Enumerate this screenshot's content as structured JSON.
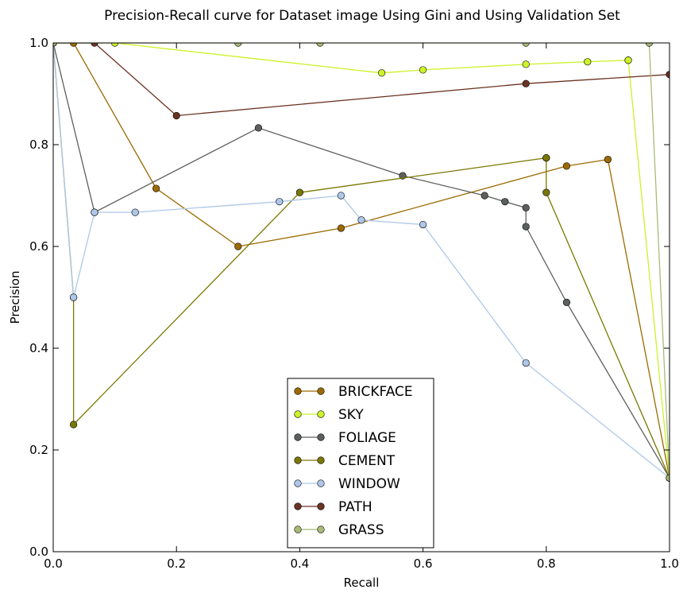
{
  "chart_data": {
    "type": "line",
    "title": "Precision-Recall curve for Dataset image Using Gini and Using Validation Set",
    "xlabel": "Recall",
    "ylabel": "Precision",
    "xlim": [
      0,
      1
    ],
    "ylim": [
      0,
      1
    ],
    "xticks": [
      "0.0",
      "0.2",
      "0.4",
      "0.6",
      "0.8",
      "1.0"
    ],
    "yticks": [
      "0.0",
      "0.2",
      "0.4",
      "0.6",
      "0.8",
      "1.0"
    ],
    "grid": false,
    "legend_position": "bottom-center",
    "series": [
      {
        "name": "BRICKFACE",
        "color": "#9c6a00",
        "points": [
          [
            0.0,
            1.0
          ],
          [
            0.033,
            1.0
          ],
          [
            0.167,
            0.714
          ],
          [
            0.3,
            0.6
          ],
          [
            0.467,
            0.636
          ],
          [
            0.833,
            0.758
          ],
          [
            0.9,
            0.771
          ],
          [
            1.0,
            0.145
          ]
        ]
      },
      {
        "name": "SKY",
        "color": "#ccf229",
        "points": [
          [
            0.0,
            1.0
          ],
          [
            0.1,
            1.0
          ],
          [
            0.533,
            0.941
          ],
          [
            0.6,
            0.947
          ],
          [
            0.767,
            0.958
          ],
          [
            0.867,
            0.963
          ],
          [
            0.933,
            0.966
          ],
          [
            0.933,
            0.966
          ],
          [
            1.0,
            0.145
          ]
        ]
      },
      {
        "name": "FOLIAGE",
        "color": "#5c605c",
        "points": [
          [
            0.0,
            1.0
          ],
          [
            0.067,
            0.667
          ],
          [
            0.333,
            0.833
          ],
          [
            0.567,
            0.739
          ],
          [
            0.7,
            0.7
          ],
          [
            0.733,
            0.688
          ],
          [
            0.767,
            0.676
          ],
          [
            0.767,
            0.639
          ],
          [
            0.833,
            0.49
          ],
          [
            1.0,
            0.145
          ]
        ]
      },
      {
        "name": "CEMENT",
        "color": "#7a7800",
        "points": [
          [
            0.0,
            1.0
          ],
          [
            0.033,
            0.5
          ],
          [
            0.033,
            0.25
          ],
          [
            0.4,
            0.706
          ],
          [
            0.8,
            0.774
          ],
          [
            0.8,
            0.774
          ],
          [
            0.8,
            0.706
          ],
          [
            1.0,
            0.145
          ]
        ]
      },
      {
        "name": "WINDOW",
        "color": "#aec7e8",
        "points": [
          [
            0.0,
            1.0
          ],
          [
            0.033,
            0.5
          ],
          [
            0.067,
            0.667
          ],
          [
            0.133,
            0.667
          ],
          [
            0.367,
            0.688
          ],
          [
            0.467,
            0.7
          ],
          [
            0.5,
            0.652
          ],
          [
            0.6,
            0.643
          ],
          [
            0.767,
            0.371
          ],
          [
            1.0,
            0.145
          ]
        ]
      },
      {
        "name": "PATH",
        "color": "#6b3322",
        "points": [
          [
            0.0,
            1.0
          ],
          [
            0.067,
            1.0
          ],
          [
            0.2,
            0.857
          ],
          [
            0.767,
            0.92
          ],
          [
            1.0,
            0.938
          ]
        ]
      },
      {
        "name": "GRASS",
        "color": "#a8bb78",
        "points": [
          [
            0.0,
            1.0
          ],
          [
            0.3,
            1.0
          ],
          [
            0.433,
            1.0
          ],
          [
            0.767,
            1.0
          ],
          [
            0.967,
            1.0
          ],
          [
            1.0,
            0.145
          ]
        ]
      }
    ]
  }
}
